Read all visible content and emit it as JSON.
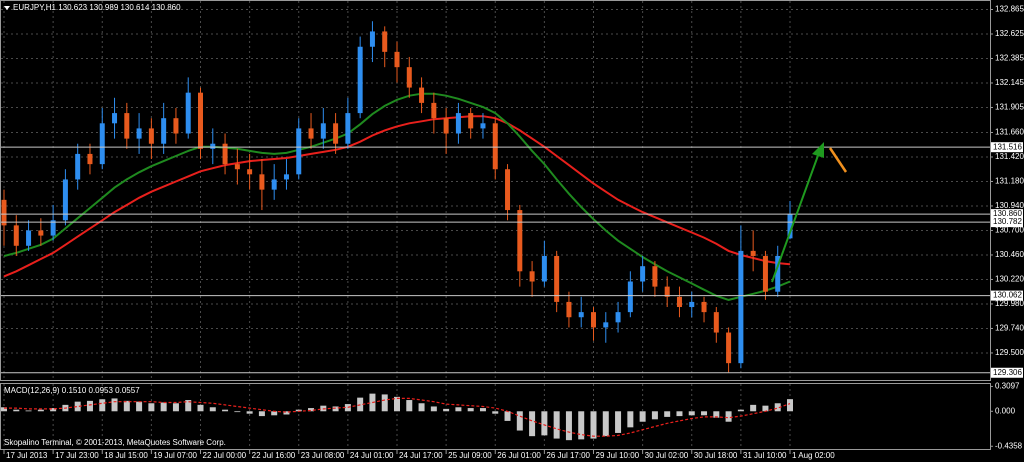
{
  "chart_data": [
    {
      "type": "candlestick",
      "title": "EURJPY,H1  130.623 130.989 130.614 130.860",
      "categories": [
        "17 Jul 2013",
        null,
        null,
        null,
        "17 Jul 23:00",
        null,
        null,
        null,
        "18 Jul 15:00",
        null,
        null,
        null,
        "19 Jul 07:00",
        null,
        null,
        null,
        "22 Jul 00:00",
        null,
        null,
        null,
        "22 Jul 16:00",
        null,
        null,
        null,
        "23 Jul 08:00",
        null,
        null,
        null,
        "24 Jul 01:00",
        null,
        null,
        null,
        "24 Jul 17:00",
        null,
        null,
        null,
        "25 Jul 09:00",
        null,
        null,
        null,
        "26 Jul 01:00",
        null,
        null,
        null,
        "26 Jul 17:00",
        null,
        null,
        null,
        "29 Jul 10:00",
        null,
        null,
        null,
        "30 Jul 02:00",
        null,
        null,
        null,
        "30 Jul 18:00",
        null,
        null,
        null,
        "31 Jul 10:00",
        null,
        null,
        null,
        "1 Aug 02:00"
      ],
      "candles": [
        [
          131.0,
          131.1,
          130.55,
          130.75
        ],
        [
          130.75,
          130.85,
          130.45,
          130.55
        ],
        [
          130.55,
          130.8,
          130.5,
          130.7
        ],
        [
          130.7,
          130.82,
          130.55,
          130.65
        ],
        [
          130.65,
          130.95,
          130.6,
          130.8
        ],
        [
          130.8,
          131.3,
          130.75,
          131.2
        ],
        [
          131.2,
          131.55,
          131.1,
          131.45
        ],
        [
          131.45,
          131.55,
          131.25,
          131.35
        ],
        [
          131.35,
          131.9,
          131.3,
          131.75
        ],
        [
          131.75,
          132.0,
          131.6,
          131.85
        ],
        [
          131.85,
          131.95,
          131.5,
          131.6
        ],
        [
          131.6,
          131.85,
          131.45,
          131.7
        ],
        [
          131.7,
          131.8,
          131.4,
          131.55
        ],
        [
          131.55,
          131.95,
          131.45,
          131.8
        ],
        [
          131.8,
          131.9,
          131.55,
          131.65
        ],
        [
          131.65,
          132.2,
          131.6,
          132.05
        ],
        [
          132.05,
          132.1,
          131.4,
          131.5
        ],
        [
          131.5,
          131.7,
          131.35,
          131.55
        ],
        [
          131.55,
          131.65,
          131.25,
          131.35
        ],
        [
          131.35,
          131.5,
          131.15,
          131.3
        ],
        [
          131.3,
          131.45,
          131.1,
          131.25
        ],
        [
          131.25,
          131.4,
          130.9,
          131.1
        ],
        [
          131.1,
          131.35,
          131.0,
          131.2
        ],
        [
          131.2,
          131.4,
          131.1,
          131.25
        ],
        [
          131.25,
          131.8,
          131.2,
          131.7
        ],
        [
          131.7,
          131.85,
          131.5,
          131.6
        ],
        [
          131.6,
          131.9,
          131.5,
          131.75
        ],
        [
          131.75,
          131.85,
          131.45,
          131.55
        ],
        [
          131.55,
          132.0,
          131.5,
          131.85
        ],
        [
          131.85,
          132.6,
          131.8,
          132.5
        ],
        [
          132.5,
          132.75,
          132.35,
          132.65
        ],
        [
          132.65,
          132.7,
          132.3,
          132.45
        ],
        [
          132.45,
          132.55,
          132.15,
          132.3
        ],
        [
          132.3,
          132.4,
          132.0,
          132.1
        ],
        [
          132.1,
          132.2,
          131.85,
          131.95
        ],
        [
          131.95,
          132.05,
          131.65,
          131.8
        ],
        [
          131.8,
          131.9,
          131.45,
          131.65
        ],
        [
          131.65,
          131.95,
          131.55,
          131.85
        ],
        [
          131.85,
          131.9,
          131.6,
          131.7
        ],
        [
          131.7,
          131.85,
          131.6,
          131.75
        ],
        [
          131.75,
          131.8,
          131.2,
          131.3
        ],
        [
          131.3,
          131.35,
          130.8,
          130.9
        ],
        [
          130.9,
          130.95,
          130.15,
          130.3
        ],
        [
          130.3,
          130.4,
          130.05,
          130.2
        ],
        [
          130.2,
          130.6,
          130.15,
          130.45
        ],
        [
          130.45,
          130.5,
          129.9,
          130.0
        ],
        [
          130.0,
          130.1,
          129.75,
          129.85
        ],
        [
          129.85,
          130.05,
          129.75,
          129.9
        ],
        [
          129.9,
          129.95,
          129.62,
          129.75
        ],
        [
          129.75,
          129.9,
          129.6,
          129.8
        ],
        [
          129.8,
          130.0,
          129.7,
          129.9
        ],
        [
          129.9,
          130.3,
          129.85,
          130.2
        ],
        [
          130.2,
          130.45,
          130.1,
          130.35
        ],
        [
          130.35,
          130.4,
          130.05,
          130.15
        ],
        [
          130.15,
          130.25,
          129.95,
          130.05
        ],
        [
          130.05,
          130.15,
          129.85,
          129.95
        ],
        [
          129.95,
          130.1,
          129.85,
          130.0
        ],
        [
          130.0,
          130.05,
          129.8,
          129.9
        ],
        [
          129.9,
          129.95,
          129.6,
          129.7
        ],
        [
          129.7,
          129.75,
          129.31,
          129.4
        ],
        [
          129.4,
          130.75,
          129.35,
          130.5
        ],
        [
          130.5,
          130.7,
          130.3,
          130.45
        ],
        [
          130.45,
          130.5,
          130.02,
          130.1
        ],
        [
          130.1,
          130.55,
          130.05,
          130.45
        ],
        [
          130.623,
          130.989,
          130.614,
          130.86
        ]
      ],
      "up_color": "#2e8ef0",
      "down_color": "#e85a1e",
      "lines": [
        {
          "color": "#e8201c",
          "values": [
            130.25,
            130.3,
            130.36,
            130.42,
            130.48,
            130.56,
            130.64,
            130.72,
            130.8,
            130.88,
            130.95,
            131.02,
            131.08,
            131.13,
            131.18,
            131.23,
            131.28,
            131.31,
            131.34,
            131.36,
            131.38,
            131.39,
            131.4,
            131.41,
            131.43,
            131.45,
            131.47,
            131.49,
            131.52,
            131.57,
            131.63,
            131.68,
            131.72,
            131.75,
            131.77,
            131.79,
            131.8,
            131.81,
            131.82,
            131.82,
            131.8,
            131.75,
            131.68,
            131.6,
            131.52,
            131.43,
            131.34,
            131.25,
            131.16,
            131.08,
            131.0,
            130.94,
            130.88,
            130.83,
            130.78,
            130.73,
            130.68,
            130.63,
            130.57,
            130.5,
            130.46,
            130.43,
            130.4,
            130.38,
            130.37
          ]
        },
        {
          "color": "#1f8a1f",
          "values": [
            130.45,
            130.48,
            130.52,
            130.56,
            130.62,
            130.72,
            130.82,
            130.92,
            131.02,
            131.12,
            131.2,
            131.27,
            131.33,
            131.38,
            131.43,
            131.48,
            131.52,
            131.52,
            131.51,
            131.5,
            131.48,
            131.46,
            131.45,
            131.46,
            131.49,
            131.52,
            131.56,
            131.6,
            131.65,
            131.74,
            131.84,
            131.92,
            131.98,
            132.02,
            132.04,
            132.04,
            132.02,
            131.99,
            131.95,
            131.91,
            131.85,
            131.75,
            131.62,
            131.48,
            131.35,
            131.2,
            131.06,
            130.93,
            130.81,
            130.7,
            130.6,
            130.52,
            130.44,
            130.37,
            130.3,
            130.24,
            130.18,
            130.12,
            130.06,
            130.02,
            130.05,
            130.08,
            130.11,
            130.15,
            130.2
          ]
        }
      ],
      "ylim": [
        129.235,
        132.958
      ],
      "yticks": [
        132.865,
        132.625,
        132.385,
        132.145,
        131.905,
        {
          "value": 131.66,
          "label": "131.660"
        },
        {
          "value": 131.42,
          "label": "131.420"
        },
        {
          "value": 131.18,
          "label": "131.180"
        },
        {
          "value": 130.94,
          "label": "130.940"
        },
        {
          "value": 130.7,
          "label": "130.700"
        },
        {
          "value": 130.46,
          "label": "130.460"
        },
        {
          "value": 130.22,
          "label": "130.220"
        },
        {
          "value": 129.98,
          "label": "129.980"
        },
        {
          "value": 129.74,
          "label": "129.740"
        },
        {
          "value": 129.5,
          "label": "129.500"
        }
      ],
      "price_lines": [
        131.516,
        {
          "value": 130.86,
          "label": "130.860"
        },
        130.782,
        130.062,
        129.306
      ],
      "grid": true
    },
    {
      "type": "macd",
      "title": "MACD(12,26,9) 0.1510 0.0953 0.0557",
      "histogram": {
        "color": "#c8c8c8",
        "values": [
          0.05,
          0.02,
          0.01,
          0.02,
          0.04,
          0.08,
          0.12,
          0.13,
          0.15,
          0.16,
          0.13,
          0.12,
          0.1,
          0.11,
          0.1,
          0.14,
          0.08,
          0.05,
          0.02,
          -0.01,
          -0.03,
          -0.06,
          -0.05,
          -0.04,
          0.02,
          0.04,
          0.07,
          0.06,
          0.09,
          0.17,
          0.22,
          0.21,
          0.18,
          0.14,
          0.1,
          0.06,
          0.03,
          0.05,
          0.04,
          0.04,
          -0.03,
          -0.12,
          -0.24,
          -0.31,
          -0.3,
          -0.34,
          -0.36,
          -0.35,
          -0.34,
          -0.31,
          -0.27,
          -0.2,
          -0.13,
          -0.1,
          -0.07,
          -0.06,
          -0.05,
          -0.05,
          -0.08,
          -0.13,
          0.02,
          0.08,
          0.07,
          0.1,
          0.151
        ]
      },
      "signal": {
        "color": "#e8201c",
        "values": [
          0.04,
          0.04,
          0.03,
          0.03,
          0.03,
          0.04,
          0.06,
          0.08,
          0.1,
          0.12,
          0.12,
          0.12,
          0.12,
          0.11,
          0.11,
          0.12,
          0.11,
          0.1,
          0.08,
          0.06,
          0.04,
          0.02,
          0.0,
          -0.01,
          0.0,
          0.01,
          0.03,
          0.04,
          0.05,
          0.08,
          0.11,
          0.14,
          0.16,
          0.16,
          0.14,
          0.12,
          0.09,
          0.08,
          0.07,
          0.06,
          0.04,
          0.0,
          -0.06,
          -0.12,
          -0.17,
          -0.22,
          -0.26,
          -0.29,
          -0.31,
          -0.31,
          -0.3,
          -0.27,
          -0.23,
          -0.19,
          -0.15,
          -0.12,
          -0.09,
          -0.07,
          -0.07,
          -0.08,
          -0.06,
          -0.03,
          0.0,
          0.04,
          0.0953
        ]
      },
      "ylim": [
        -0.47,
        0.34
      ],
      "yticks": [
        0.3097,
        {
          "value": 0,
          "label": "0.000"
        },
        -0.4358
      ]
    }
  ],
  "footer": "Skopalino Terminal, © 2001-2013, MetaQuotes Software Corp."
}
